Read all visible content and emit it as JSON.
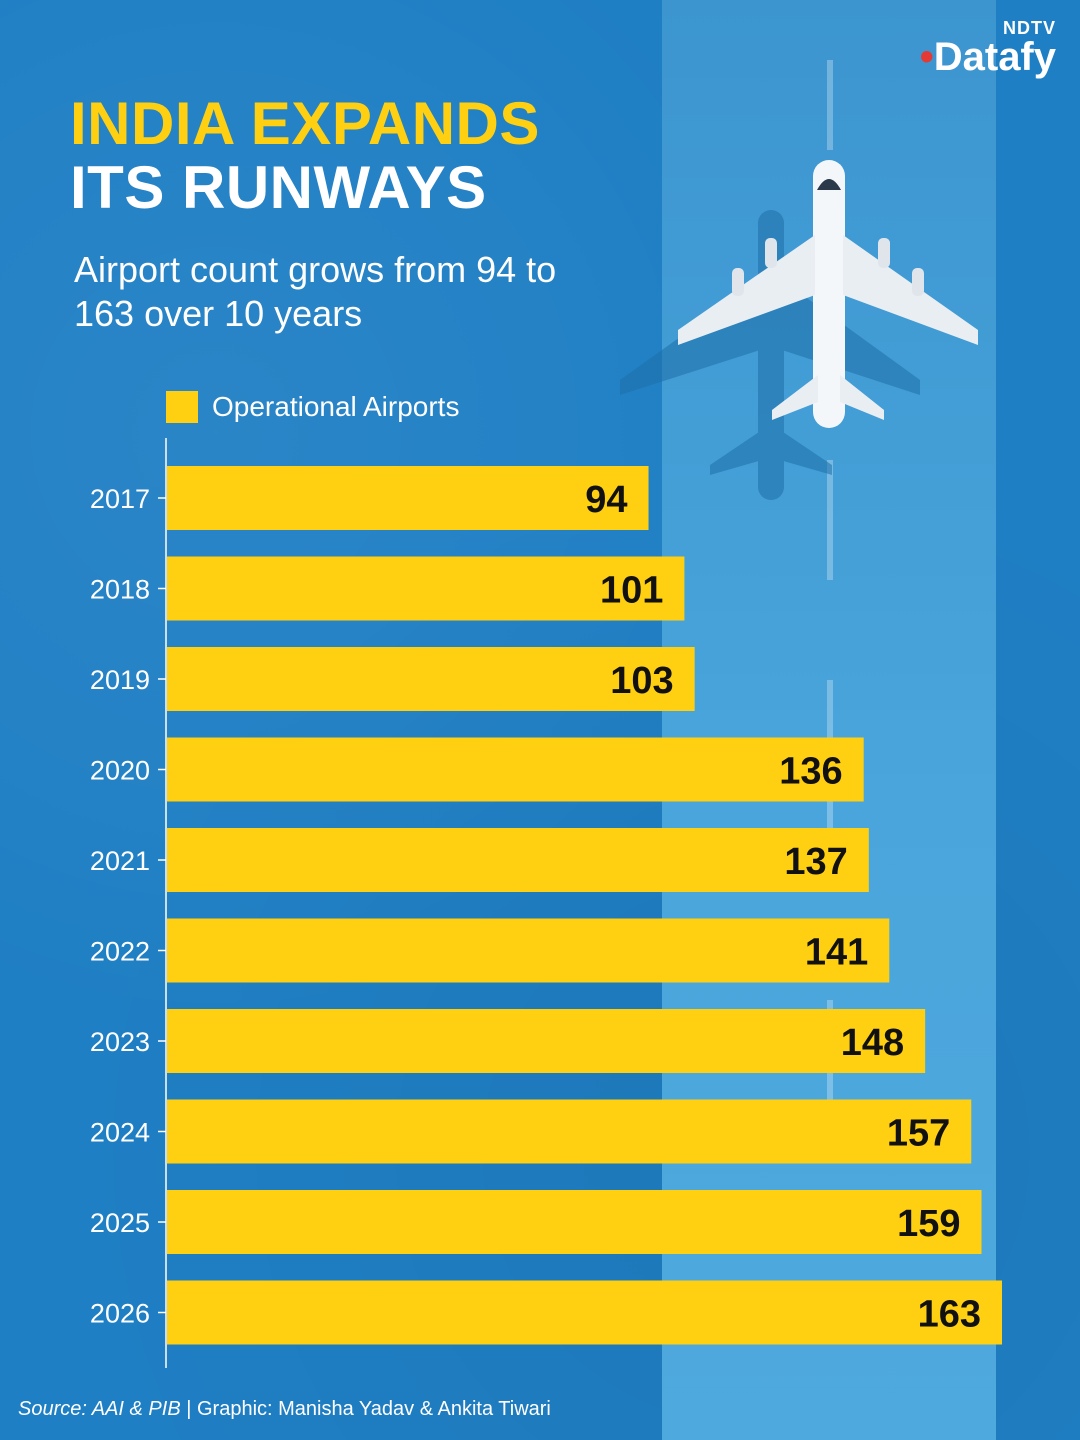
{
  "brand": {
    "top": "NDTV",
    "main": "Datafy"
  },
  "title": {
    "line1": "INDIA EXPANDS",
    "line2": "ITS RUNWAYS"
  },
  "subtitle": "Airport count grows from 94 to 163 over 10 years",
  "source": {
    "label": "Source: AAI & PIB",
    "credit": " | Graphic: Manisha Yadav & Ankita Tiwari"
  },
  "colors": {
    "background": "#1f7fc4",
    "bar": "#ffd011",
    "title_accent": "#ffd011"
  },
  "chart_data": {
    "type": "bar",
    "orientation": "horizontal",
    "categories": [
      "2017",
      "2018",
      "2019",
      "2020",
      "2021",
      "2022",
      "2023",
      "2024",
      "2025",
      "2026"
    ],
    "series": [
      {
        "name": "Operational Airports",
        "values": [
          94,
          101,
          103,
          136,
          137,
          141,
          148,
          157,
          159,
          163
        ]
      }
    ],
    "legend": "top-left",
    "grid": false
  }
}
